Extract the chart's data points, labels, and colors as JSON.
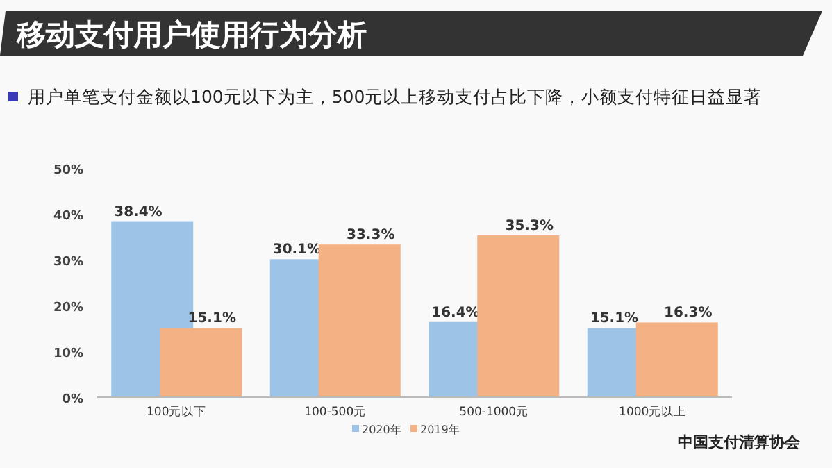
{
  "chart_data": {
    "type": "bar",
    "title": "移动支付用户使用行为分析",
    "subtitle": "用户单笔支付金额以100元以下为主，500元以上移动支付占比下降，小额支付特征日益显著",
    "categories": [
      "100元以下",
      "100-500元",
      "500-1000元",
      "1000元以上"
    ],
    "series": [
      {
        "name": "2020年",
        "color": "#9dc3e6",
        "values": [
          38.4,
          30.1,
          16.4,
          15.1
        ],
        "value_labels": [
          "38.4%",
          "30.1%",
          "16.4%",
          "15.1%"
        ]
      },
      {
        "name": "2019年",
        "color": "#f4b183",
        "values": [
          15.1,
          33.3,
          35.3,
          16.3
        ],
        "value_labels": [
          "15.1%",
          "33.3%",
          "35.3%",
          "16.3%"
        ]
      }
    ],
    "ylim": [
      0,
      50
    ],
    "yticks": [
      {
        "value": 0,
        "label": "0%"
      },
      {
        "value": 10,
        "label": "10%"
      },
      {
        "value": 20,
        "label": "20%"
      },
      {
        "value": 30,
        "label": "30%"
      },
      {
        "value": 40,
        "label": "40%"
      },
      {
        "value": 50,
        "label": "50%"
      }
    ],
    "grid": false,
    "legend": "bottom",
    "annotations": [
      "中国支付清算协会"
    ]
  }
}
